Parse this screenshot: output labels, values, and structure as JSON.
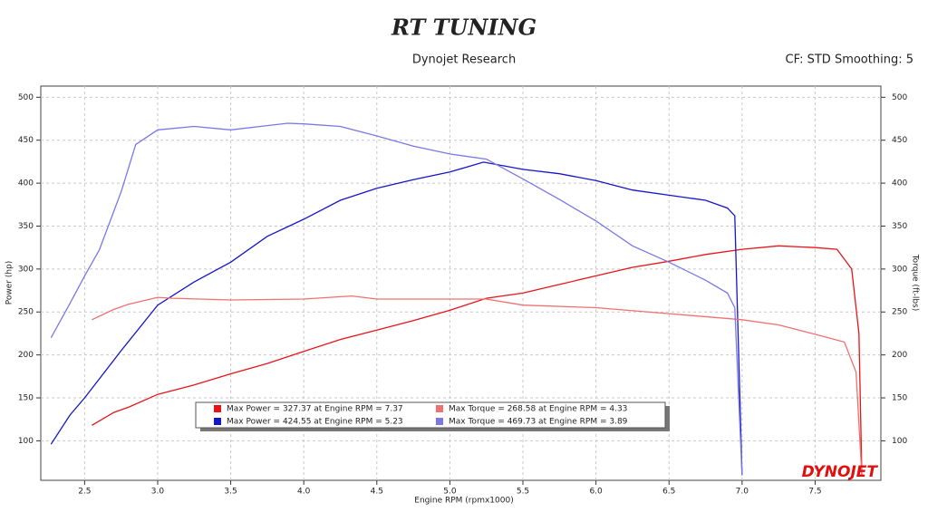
{
  "logo": "RT TUNING",
  "brand": "DYNOJET",
  "chart_data": {
    "type": "line",
    "title": "Dynojet Research",
    "subtitle": "CF: STD Smoothing: 5",
    "x_label": "Engine RPM (rpmx1000)",
    "y_label": "Power (hp)",
    "y2_label": "Torque (ft-lbs)",
    "xlim": [
      2.2,
      7.95
    ],
    "ylim": [
      54,
      513
    ],
    "y2lim": [
      54,
      513
    ],
    "xticks": [
      2.5,
      {
        "value": 3,
        "label": "3.0"
      },
      3.5,
      {
        "value": 4,
        "label": "4.0"
      },
      4.5,
      {
        "value": 5,
        "label": "5.0"
      },
      5.5,
      {
        "value": 6,
        "label": "6.0"
      },
      6.5,
      {
        "value": 7,
        "label": "7.0"
      },
      7.5
    ],
    "yticks": [
      100,
      150,
      200,
      250,
      300,
      350,
      400,
      450,
      500
    ],
    "y2ticks": [
      100,
      150,
      200,
      250,
      300,
      350,
      400,
      450,
      500
    ],
    "grid": true,
    "series": [
      {
        "name": "Max Power = 327.37 at Engine RPM = 7.37",
        "color": "#e8141a",
        "x": [
          2.55,
          2.7,
          2.8,
          3.0,
          3.25,
          3.5,
          3.75,
          4.0,
          4.25,
          4.5,
          4.75,
          5.0,
          5.25,
          5.5,
          5.75,
          6.0,
          6.25,
          6.5,
          6.75,
          7.0,
          7.25,
          7.5,
          7.65,
          7.75,
          7.8,
          7.82
        ],
        "values": [
          118,
          133,
          139,
          154,
          165,
          178,
          190,
          204,
          218,
          229,
          240,
          252,
          266,
          272,
          282,
          292,
          302,
          309,
          317,
          323,
          327,
          325,
          323,
          300,
          225,
          60
        ]
      },
      {
        "name": "Max Power = 424.55 at Engine RPM = 5.23",
        "color": "#1515c8",
        "x": [
          2.27,
          2.4,
          2.5,
          2.75,
          3.0,
          3.25,
          3.5,
          3.75,
          4.0,
          4.25,
          4.5,
          4.75,
          5.0,
          5.23,
          5.5,
          5.75,
          6.0,
          6.25,
          6.5,
          6.75,
          6.9,
          6.95,
          7.0
        ],
        "values": [
          96,
          130,
          150,
          205,
          258,
          285,
          308,
          338,
          358,
          380,
          394,
          404,
          413,
          424.5,
          416,
          411,
          403,
          392,
          386,
          380,
          371,
          362,
          60
        ]
      },
      {
        "name": "Max Torque = 268.58 at Engine RPM = 4.33",
        "color": "#f07070",
        "axis": "y2",
        "x": [
          2.55,
          2.7,
          2.8,
          3.0,
          3.1,
          3.5,
          4.0,
          4.33,
          4.5,
          5.0,
          5.25,
          5.5,
          6.0,
          6.5,
          7.0,
          7.25,
          7.5,
          7.7,
          7.78,
          7.82
        ],
        "values": [
          241,
          253,
          259,
          267,
          266,
          264,
          265,
          268.6,
          265,
          265,
          265,
          258,
          255,
          248,
          241,
          235,
          224,
          215,
          180,
          60
        ]
      },
      {
        "name": "Max Torque = 469.73 at Engine RPM = 3.89",
        "color": "#7878e8",
        "axis": "y2",
        "x": [
          2.27,
          2.4,
          2.5,
          2.6,
          2.75,
          2.85,
          3.0,
          3.25,
          3.5,
          3.75,
          3.89,
          4.0,
          4.25,
          4.5,
          4.75,
          5.0,
          5.25,
          5.5,
          5.75,
          6.0,
          6.25,
          6.5,
          6.75,
          6.9,
          6.95,
          7.0
        ],
        "values": [
          220,
          260,
          292,
          322,
          390,
          445,
          462,
          466,
          462,
          467,
          469.7,
          469,
          466,
          455,
          443,
          434,
          428,
          405,
          381,
          356,
          327,
          308,
          287,
          272,
          255,
          60
        ]
      }
    ]
  }
}
